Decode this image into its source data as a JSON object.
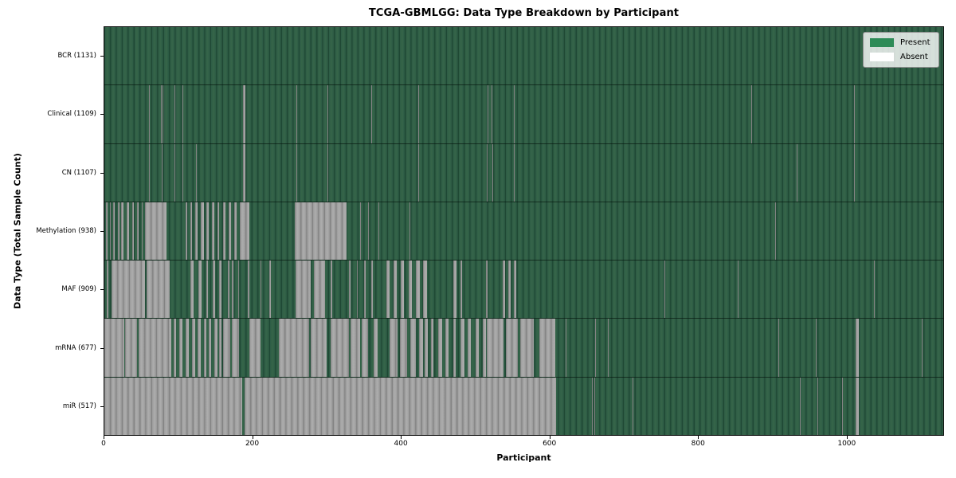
{
  "title": "TCGA-GBMLGG: Data Type Breakdown by Participant",
  "axes": {
    "xlabel": "Participant",
    "ylabel": "Data Type (Total Sample Count)"
  },
  "legend": {
    "items": [
      {
        "label": "Present",
        "color": "#2e8b57"
      },
      {
        "label": "Absent",
        "color": "#ffffff"
      }
    ]
  },
  "chart_data": {
    "type": "heatmap",
    "title": "TCGA-GBMLGG: Data Type Breakdown by Participant",
    "xlabel": "Participant",
    "ylabel": "Data Type (Total Sample Count)",
    "x_range": [
      0,
      1131
    ],
    "x_ticks": [
      0,
      200,
      400,
      600,
      800,
      1000
    ],
    "legend_entries": [
      "Present",
      "Absent"
    ],
    "colors": {
      "present": "#2e8b57",
      "absent": "#ffffff",
      "grid": "off"
    },
    "rows": [
      {
        "label": "BCR (1131)",
        "data_type": "BCR",
        "total": 1131,
        "absent_segments": []
      },
      {
        "label": "Clinical (1109)",
        "data_type": "Clinical",
        "total": 1109,
        "absent_segments": [
          [
            60,
            61
          ],
          [
            76,
            77
          ],
          [
            78,
            79
          ],
          [
            95,
            96
          ],
          [
            105,
            106
          ],
          [
            187,
            190
          ],
          [
            259,
            260
          ],
          [
            301,
            302
          ],
          [
            355,
            356
          ],
          [
            360,
            361
          ],
          [
            423,
            424
          ],
          [
            517,
            518
          ],
          [
            522,
            523
          ],
          [
            552,
            553
          ],
          [
            872,
            873
          ],
          [
            1011,
            1012
          ]
        ]
      },
      {
        "label": "CN (1107)",
        "data_type": "CN",
        "total": 1107,
        "absent_segments": [
          [
            60,
            61
          ],
          [
            77,
            78
          ],
          [
            95,
            96
          ],
          [
            105,
            106
          ],
          [
            124,
            125
          ],
          [
            187,
            190
          ],
          [
            259,
            260
          ],
          [
            301,
            302
          ],
          [
            423,
            424
          ],
          [
            516,
            517
          ],
          [
            523,
            524
          ],
          [
            552,
            553
          ],
          [
            933,
            934
          ],
          [
            1011,
            1012
          ]
        ]
      },
      {
        "label": "Methylation (938)",
        "data_type": "Methylation",
        "total": 938,
        "absent_segments": [
          [
            2,
            4
          ],
          [
            7,
            9
          ],
          [
            12,
            14
          ],
          [
            18,
            20
          ],
          [
            23,
            26
          ],
          [
            30,
            33
          ],
          [
            38,
            40
          ],
          [
            44,
            46
          ],
          [
            50,
            52
          ],
          [
            55,
            84
          ],
          [
            110,
            112
          ],
          [
            116,
            118
          ],
          [
            122,
            126
          ],
          [
            130,
            134
          ],
          [
            138,
            141
          ],
          [
            145,
            148
          ],
          [
            152,
            155
          ],
          [
            160,
            163
          ],
          [
            168,
            171
          ],
          [
            175,
            178
          ],
          [
            183,
            196
          ],
          [
            257,
            327
          ],
          [
            345,
            346
          ],
          [
            355,
            357
          ],
          [
            370,
            371
          ],
          [
            411,
            412
          ],
          [
            904,
            905
          ]
        ]
      },
      {
        "label": "MAF (909)",
        "data_type": "MAF",
        "total": 909,
        "absent_segments": [
          [
            3,
            5
          ],
          [
            10,
            55
          ],
          [
            57,
            88
          ],
          [
            116,
            120
          ],
          [
            127,
            131
          ],
          [
            137,
            140
          ],
          [
            146,
            149
          ],
          [
            155,
            158
          ],
          [
            166,
            169
          ],
          [
            172,
            174
          ],
          [
            180,
            182
          ],
          [
            193,
            195
          ],
          [
            210,
            212
          ],
          [
            222,
            224
          ],
          [
            258,
            278
          ],
          [
            283,
            297
          ],
          [
            305,
            307
          ],
          [
            330,
            332
          ],
          [
            340,
            342
          ],
          [
            350,
            352
          ],
          [
            360,
            362
          ],
          [
            380,
            385
          ],
          [
            390,
            394
          ],
          [
            400,
            404
          ],
          [
            410,
            415
          ],
          [
            420,
            425
          ],
          [
            430,
            435
          ],
          [
            470,
            475
          ],
          [
            480,
            482
          ],
          [
            515,
            517
          ],
          [
            537,
            540
          ],
          [
            545,
            548
          ],
          [
            552,
            555
          ],
          [
            755,
            756
          ],
          [
            854,
            855
          ],
          [
            1038,
            1039
          ]
        ]
      },
      {
        "label": "mRNA (677)",
        "data_type": "mRNA",
        "total": 677,
        "absent_segments": [
          [
            0,
            27
          ],
          [
            28,
            44
          ],
          [
            46,
            90
          ],
          [
            93,
            97
          ],
          [
            101,
            105
          ],
          [
            110,
            114
          ],
          [
            118,
            122
          ],
          [
            126,
            130
          ],
          [
            134,
            137
          ],
          [
            141,
            144
          ],
          [
            148,
            152
          ],
          [
            155,
            158
          ],
          [
            160,
            170
          ],
          [
            172,
            182
          ],
          [
            196,
            210
          ],
          [
            235,
            276
          ],
          [
            278,
            300
          ],
          [
            305,
            330
          ],
          [
            332,
            345
          ],
          [
            347,
            355
          ],
          [
            363,
            368
          ],
          [
            385,
            395
          ],
          [
            398,
            408
          ],
          [
            412,
            420
          ],
          [
            424,
            430
          ],
          [
            432,
            436
          ],
          [
            440,
            444
          ],
          [
            450,
            455
          ],
          [
            460,
            464
          ],
          [
            470,
            474
          ],
          [
            480,
            485
          ],
          [
            490,
            494
          ],
          [
            500,
            505
          ],
          [
            510,
            514
          ],
          [
            516,
            538
          ],
          [
            541,
            557
          ],
          [
            561,
            579
          ],
          [
            586,
            608
          ],
          [
            622,
            623
          ],
          [
            662,
            663
          ],
          [
            679,
            680
          ],
          [
            909,
            910
          ],
          [
            959,
            960
          ],
          [
            1013,
            1017
          ],
          [
            1102,
            1103
          ]
        ]
      },
      {
        "label": "miR (517)",
        "data_type": "miR",
        "total": 517,
        "absent_segments": [
          [
            0,
            186
          ],
          [
            189,
            609
          ],
          [
            657,
            658
          ],
          [
            661,
            662
          ],
          [
            712,
            713
          ],
          [
            938,
            939
          ],
          [
            961,
            962
          ],
          [
            995,
            996
          ],
          [
            1013,
            1017
          ]
        ]
      }
    ]
  }
}
